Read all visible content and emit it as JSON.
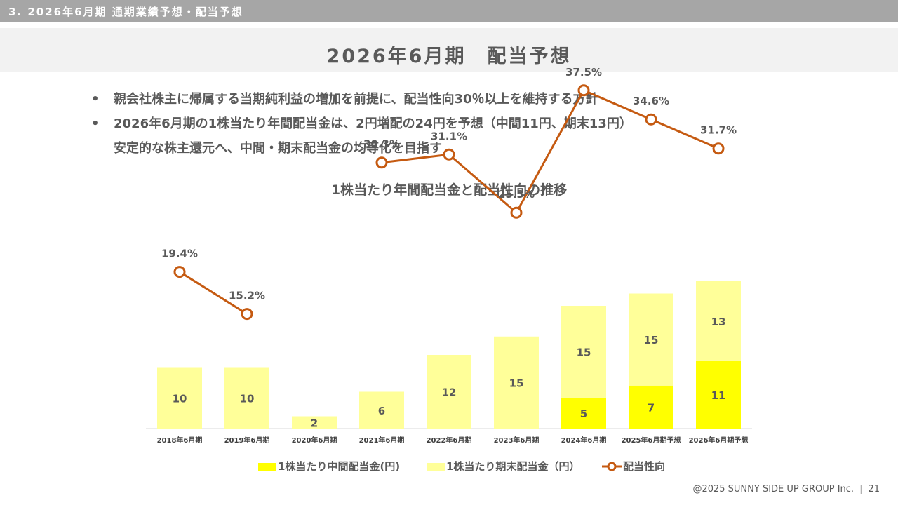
{
  "header": {
    "section": "3. 2026年6月期 通期業績予想・配当予想",
    "title": "2026年6月期　配当予想"
  },
  "bullets": [
    {
      "line1": "親会社株主に帰属する当期純利益の増加を前提に、配当性向30％以上を維持する方針",
      "line2": ""
    },
    {
      "line1": "2026年6月期の1株当たり年間配当金は、2円増配の24円を予想（中間11円、期末13円）",
      "line2": "安定的な株主還元へ、中間・期末配当金の均等化を目指す"
    }
  ],
  "bullet_marker": "•",
  "chart_data": {
    "type": "bar",
    "title": "1株当たり年間配当金と配当性向の推移",
    "categories": [
      "2018年6月期",
      "2019年6月期",
      "2020年6月期",
      "2021年6月期",
      "2022年6月期",
      "2023年6月期",
      "2024年6月期",
      "2025年6月期予想",
      "2026年6月期予想"
    ],
    "series": [
      {
        "name": "1株当たり中間配当金(円)",
        "kind": "bar",
        "values": [
          0,
          0,
          0,
          0,
          0,
          0,
          5,
          7,
          11
        ],
        "color": "#ffff00"
      },
      {
        "name": "1株当たり期末配当金（円）",
        "kind": "bar",
        "values": [
          10,
          10,
          2,
          6,
          12,
          15,
          15,
          15,
          13
        ],
        "color": "#ffff99"
      },
      {
        "name": "配当性向",
        "kind": "line",
        "values": [
          19.4,
          15.2,
          null,
          30.3,
          31.1,
          25.3,
          37.5,
          34.6,
          31.7
        ],
        "labels": [
          "19.4%",
          "15.2%",
          "",
          "30.3%",
          "31.1%",
          "25.3%",
          "37.5%",
          "34.6%",
          "31.7%"
        ],
        "color": "#c55a11"
      }
    ],
    "stacked": true,
    "legend_position": "bottom"
  },
  "footer": {
    "copyright": "@2025 SUNNY SIDE UP GROUP Inc.",
    "separator": "|",
    "page": "21"
  }
}
